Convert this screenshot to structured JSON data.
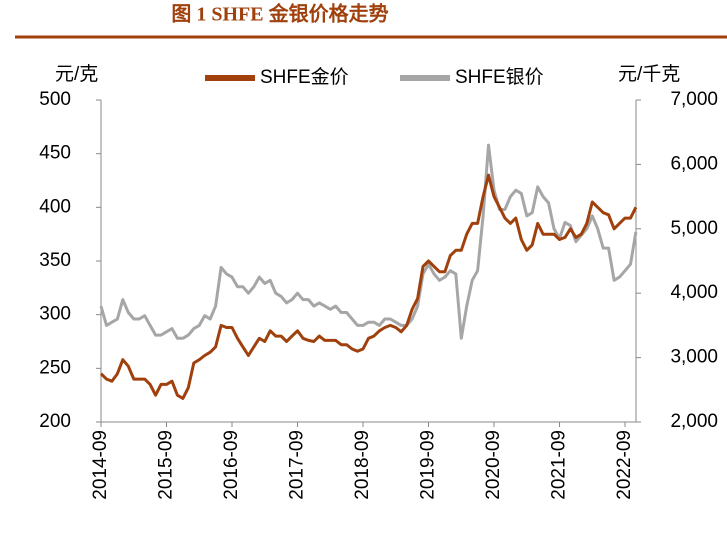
{
  "chart_data": {
    "type": "line",
    "title": "图 1    SHFE 金银价格走势",
    "y_label": "元/克",
    "y2_label": "元/千克",
    "x": [
      "2014-09",
      "2014-10",
      "2014-11",
      "2014-12",
      "2015-01",
      "2015-02",
      "2015-03",
      "2015-04",
      "2015-05",
      "2015-06",
      "2015-07",
      "2015-08",
      "2015-09",
      "2015-10",
      "2015-11",
      "2015-12",
      "2016-01",
      "2016-02",
      "2016-03",
      "2016-04",
      "2016-05",
      "2016-06",
      "2016-07",
      "2016-08",
      "2016-09",
      "2016-10",
      "2016-11",
      "2016-12",
      "2017-01",
      "2017-02",
      "2017-03",
      "2017-04",
      "2017-05",
      "2017-06",
      "2017-07",
      "2017-08",
      "2017-09",
      "2017-10",
      "2017-11",
      "2017-12",
      "2018-01",
      "2018-02",
      "2018-03",
      "2018-04",
      "2018-05",
      "2018-06",
      "2018-07",
      "2018-08",
      "2018-09",
      "2018-10",
      "2018-11",
      "2018-12",
      "2019-01",
      "2019-02",
      "2019-03",
      "2019-04",
      "2019-05",
      "2019-06",
      "2019-07",
      "2019-08",
      "2019-09",
      "2019-10",
      "2019-11",
      "2019-12",
      "2020-01",
      "2020-02",
      "2020-03",
      "2020-04",
      "2020-05",
      "2020-06",
      "2020-07",
      "2020-08",
      "2020-09",
      "2020-10",
      "2020-11",
      "2020-12",
      "2021-01",
      "2021-02",
      "2021-03",
      "2021-04",
      "2021-05",
      "2021-06",
      "2021-07",
      "2021-08",
      "2021-09",
      "2021-10",
      "2021-11",
      "2021-12",
      "2022-01",
      "2022-02",
      "2022-03",
      "2022-04",
      "2022-05",
      "2022-06",
      "2022-07",
      "2022-08",
      "2022-09",
      "2022-10",
      "2022-11"
    ],
    "xticks": [
      "2014-09",
      "2015-09",
      "2016-09",
      "2017-09",
      "2018-09",
      "2019-09",
      "2020-09",
      "2021-09",
      "2022-09"
    ],
    "series": [
      {
        "name": "SHFE金价",
        "color": "#A0410D",
        "values": [
          245,
          240,
          238,
          245,
          258,
          252,
          240,
          240,
          240,
          235,
          225,
          235,
          235,
          238,
          225,
          222,
          232,
          255,
          258,
          262,
          265,
          270,
          290,
          288,
          288,
          278,
          270,
          262,
          270,
          278,
          275,
          285,
          280,
          280,
          275,
          280,
          285,
          278,
          276,
          275,
          280,
          276,
          276,
          276,
          272,
          272,
          268,
          266,
          268,
          278,
          280,
          285,
          288,
          290,
          288,
          284,
          290,
          305,
          315,
          345,
          350,
          345,
          340,
          340,
          355,
          360,
          360,
          375,
          385,
          385,
          410,
          430,
          410,
          400,
          390,
          385,
          390,
          370,
          360,
          365,
          385,
          375,
          375,
          375,
          370,
          372,
          380,
          372,
          375,
          385,
          405,
          400,
          395,
          393,
          380,
          385,
          390,
          390,
          400
        ]
      },
      {
        "name": "SHFE银价",
        "color": "#A6A6A6",
        "axis": "y2",
        "values": [
          3800,
          3500,
          3550,
          3600,
          3900,
          3700,
          3600,
          3600,
          3650,
          3500,
          3350,
          3350,
          3400,
          3450,
          3300,
          3300,
          3350,
          3450,
          3500,
          3650,
          3600,
          3800,
          4400,
          4300,
          4250,
          4100,
          4100,
          4000,
          4100,
          4250,
          4150,
          4200,
          4000,
          3950,
          3850,
          3900,
          4000,
          3900,
          3900,
          3800,
          3850,
          3800,
          3750,
          3800,
          3700,
          3700,
          3600,
          3500,
          3500,
          3550,
          3550,
          3500,
          3600,
          3600,
          3550,
          3500,
          3500,
          3600,
          3800,
          4300,
          4450,
          4300,
          4200,
          4250,
          4350,
          4300,
          3300,
          3800,
          4200,
          4350,
          5200,
          6300,
          5600,
          5300,
          5300,
          5500,
          5600,
          5550,
          5200,
          5250,
          5650,
          5500,
          5400,
          5000,
          4850,
          5100,
          5050,
          4800,
          4900,
          5000,
          5200,
          5000,
          4700,
          4700,
          4200,
          4250,
          4350,
          4450,
          4950
        ]
      }
    ],
    "ylim": [
      200,
      500
    ],
    "yticks": [
      200,
      250,
      300,
      350,
      400,
      450,
      500
    ],
    "y2lim": [
      2000,
      7000
    ],
    "y2ticks": [
      {
        "value": 2000,
        "label": "2,000"
      },
      {
        "value": 3000,
        "label": "3,000"
      },
      {
        "value": 4000,
        "label": "4,000"
      },
      {
        "value": 5000,
        "label": "5,000"
      },
      {
        "value": 6000,
        "label": "6,000"
      },
      {
        "value": 7000,
        "label": "7,000"
      }
    ],
    "grid": false,
    "legend": "top"
  }
}
